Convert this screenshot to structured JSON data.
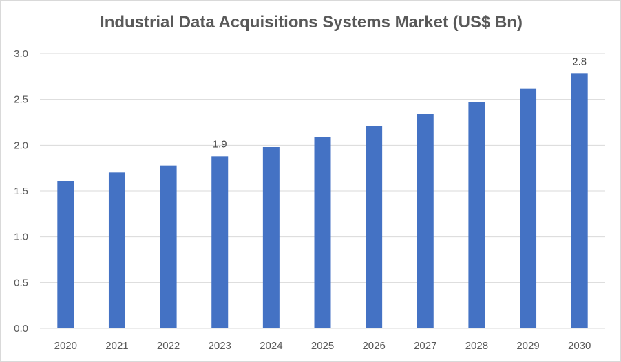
{
  "chart_data": {
    "type": "bar",
    "title": "Industrial Data Acquisitions Systems Market (US$ Bn)",
    "categories": [
      "2020",
      "2021",
      "2022",
      "2023",
      "2024",
      "2025",
      "2026",
      "2027",
      "2028",
      "2029",
      "2030"
    ],
    "values": [
      1.61,
      1.7,
      1.78,
      1.88,
      1.98,
      2.09,
      2.21,
      2.34,
      2.47,
      2.62,
      2.78
    ],
    "data_labels": [
      {
        "category": "2023",
        "text": "1.9"
      },
      {
        "category": "2030",
        "text": "2.8"
      }
    ],
    "ylim": [
      0,
      3.0
    ],
    "yticks": [
      "0.0",
      "0.5",
      "1.0",
      "1.5",
      "2.0",
      "2.5",
      "3.0"
    ],
    "xlabel": "",
    "ylabel": "",
    "grid": true,
    "legend": "none",
    "colors": {
      "bar": "#4472c4",
      "grid": "#d9d9d9",
      "text": "#595959"
    }
  }
}
